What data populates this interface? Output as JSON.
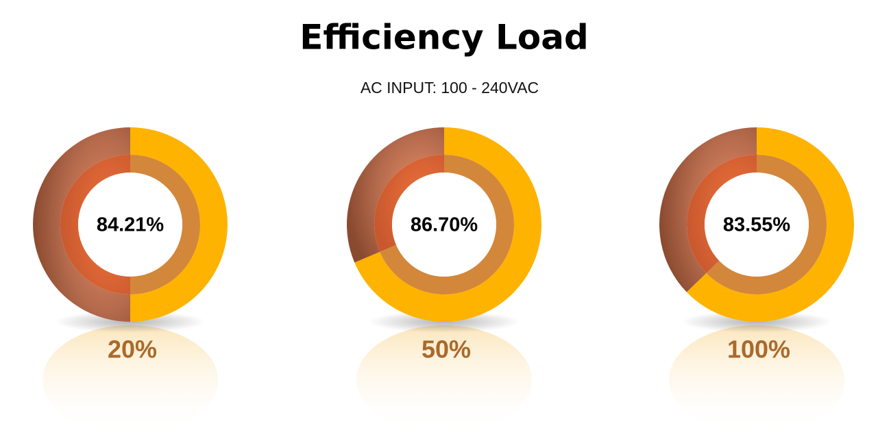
{
  "title": "Efficiency Load",
  "subtitle": "AC INPUT: 100 - 240VAC",
  "gauges": [
    {
      "value": "84.21%",
      "load": "20%"
    },
    {
      "value": "86.70%",
      "load": "50%"
    },
    {
      "value": "83.55%",
      "load": "100%"
    }
  ]
}
